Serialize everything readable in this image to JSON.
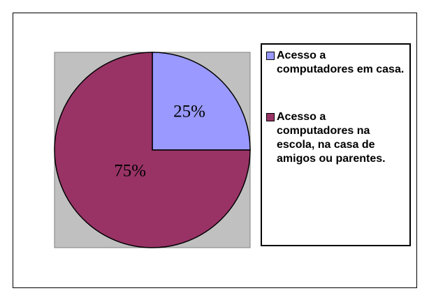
{
  "chart_data": {
    "type": "pie",
    "categories": [
      "Acesso a computadores em casa.",
      "Acesso a computadores na escola, na casa de amigos ou parentes."
    ],
    "values": [
      25,
      75
    ],
    "value_labels": [
      "25%",
      "75%"
    ],
    "colors": [
      "#9999ff",
      "#993366"
    ]
  }
}
